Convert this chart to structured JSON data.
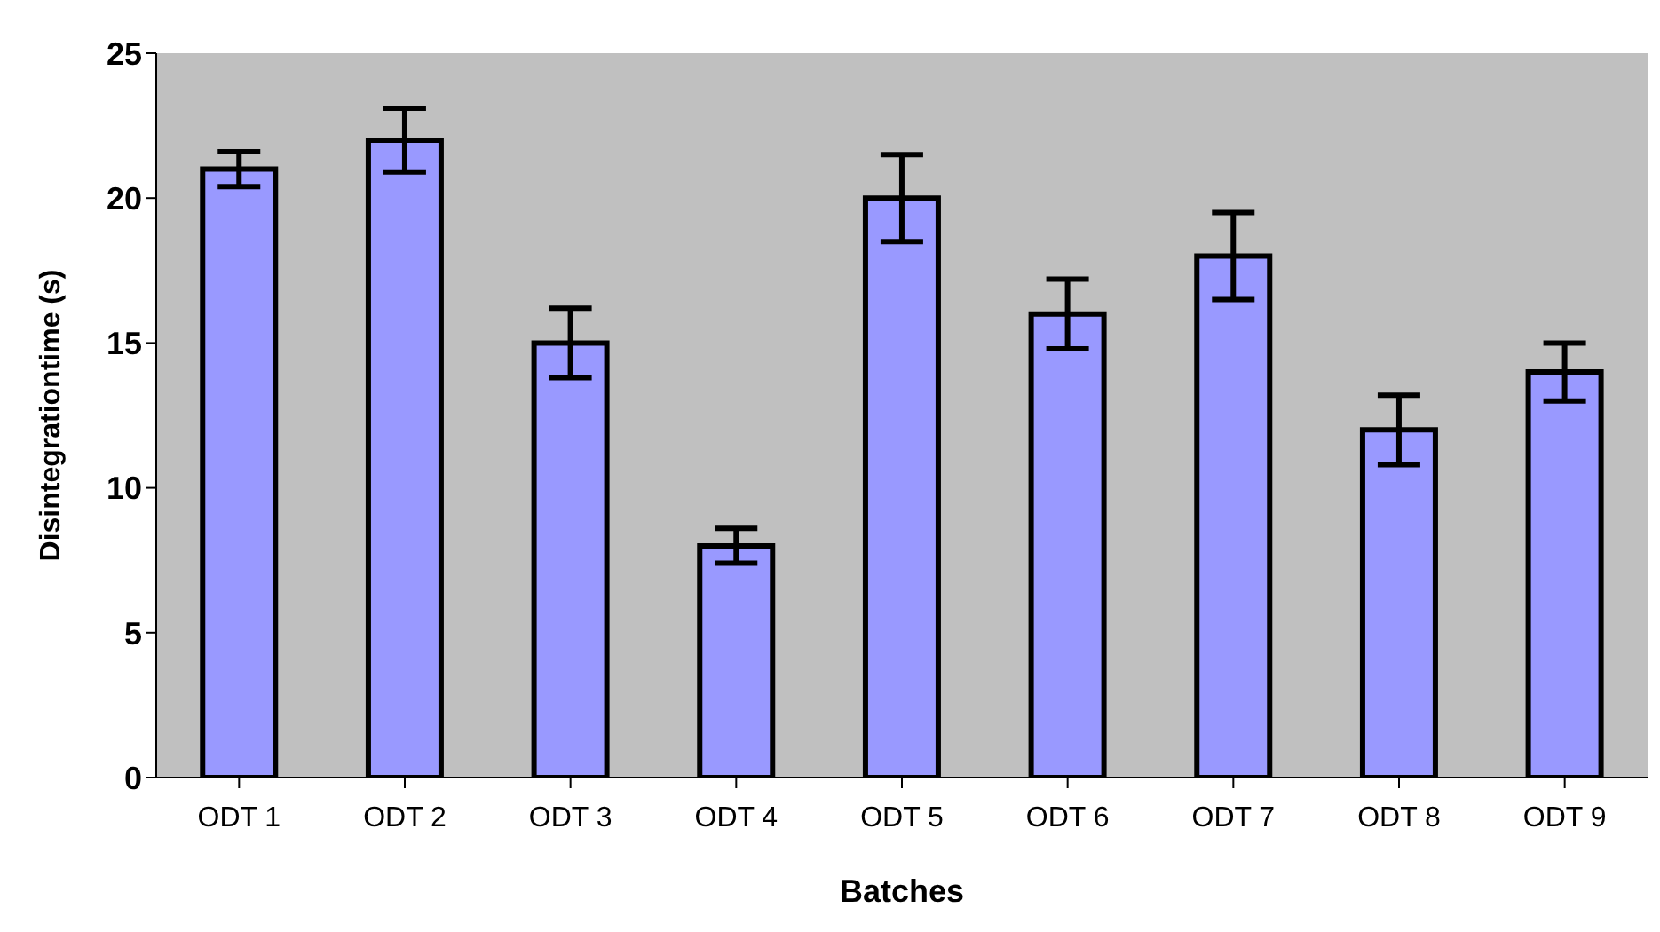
{
  "chart_data": {
    "type": "bar",
    "xlabel": "Batches",
    "ylabel": "Disintegrationtime (s)",
    "categories": [
      "ODT 1",
      "ODT 2",
      "ODT 3",
      "ODT 4",
      "ODT 5",
      "ODT 6",
      "ODT 7",
      "ODT 8",
      "ODT 9"
    ],
    "values": [
      21,
      22,
      15,
      8,
      20,
      16,
      18,
      12,
      14
    ],
    "errors": [
      0.6,
      1.1,
      1.2,
      0.6,
      1.5,
      1.2,
      1.5,
      1.2,
      1
    ],
    "color": "#9999ff",
    "ylim": [
      0,
      25
    ],
    "yticks": [
      0,
      5,
      10,
      15,
      20,
      25
    ],
    "grid": false
  }
}
